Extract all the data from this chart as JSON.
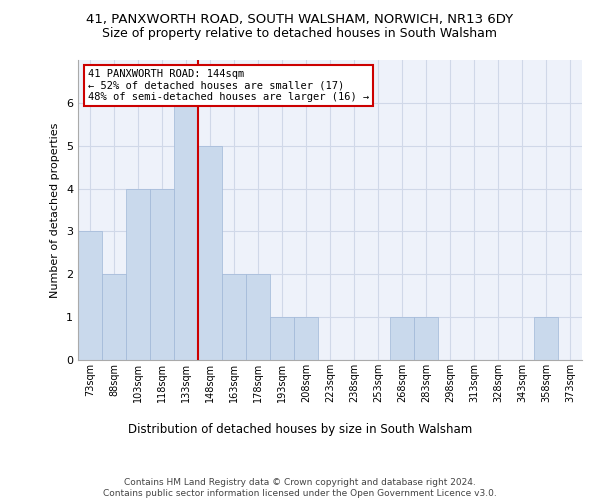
{
  "title": "41, PANXWORTH ROAD, SOUTH WALSHAM, NORWICH, NR13 6DY",
  "subtitle": "Size of property relative to detached houses in South Walsham",
  "xlabel": "Distribution of detached houses by size in South Walsham",
  "ylabel": "Number of detached properties",
  "categories": [
    "73sqm",
    "88sqm",
    "103sqm",
    "118sqm",
    "133sqm",
    "148sqm",
    "163sqm",
    "178sqm",
    "193sqm",
    "208sqm",
    "223sqm",
    "238sqm",
    "253sqm",
    "268sqm",
    "283sqm",
    "298sqm",
    "313sqm",
    "328sqm",
    "343sqm",
    "358sqm",
    "373sqm"
  ],
  "values": [
    3,
    2,
    4,
    4,
    6,
    5,
    2,
    2,
    1,
    1,
    0,
    0,
    0,
    1,
    1,
    0,
    0,
    0,
    0,
    1,
    0
  ],
  "bar_color": "#c9d9ec",
  "bar_edge_color": "#a0b8d8",
  "subject_line_color": "#cc0000",
  "subject_line_index": 4,
  "annotation_text": "41 PANXWORTH ROAD: 144sqm\n← 52% of detached houses are smaller (17)\n48% of semi-detached houses are larger (16) →",
  "annotation_box_color": "#cc0000",
  "ylim": [
    0,
    7
  ],
  "yticks": [
    0,
    1,
    2,
    3,
    4,
    5,
    6,
    7
  ],
  "grid_color": "#d0d8e8",
  "background_color": "#eef2fa",
  "title_fontsize": 9.5,
  "subtitle_fontsize": 9,
  "footer_fontsize": 6.5,
  "footer": "Contains HM Land Registry data © Crown copyright and database right 2024.\nContains public sector information licensed under the Open Government Licence v3.0."
}
